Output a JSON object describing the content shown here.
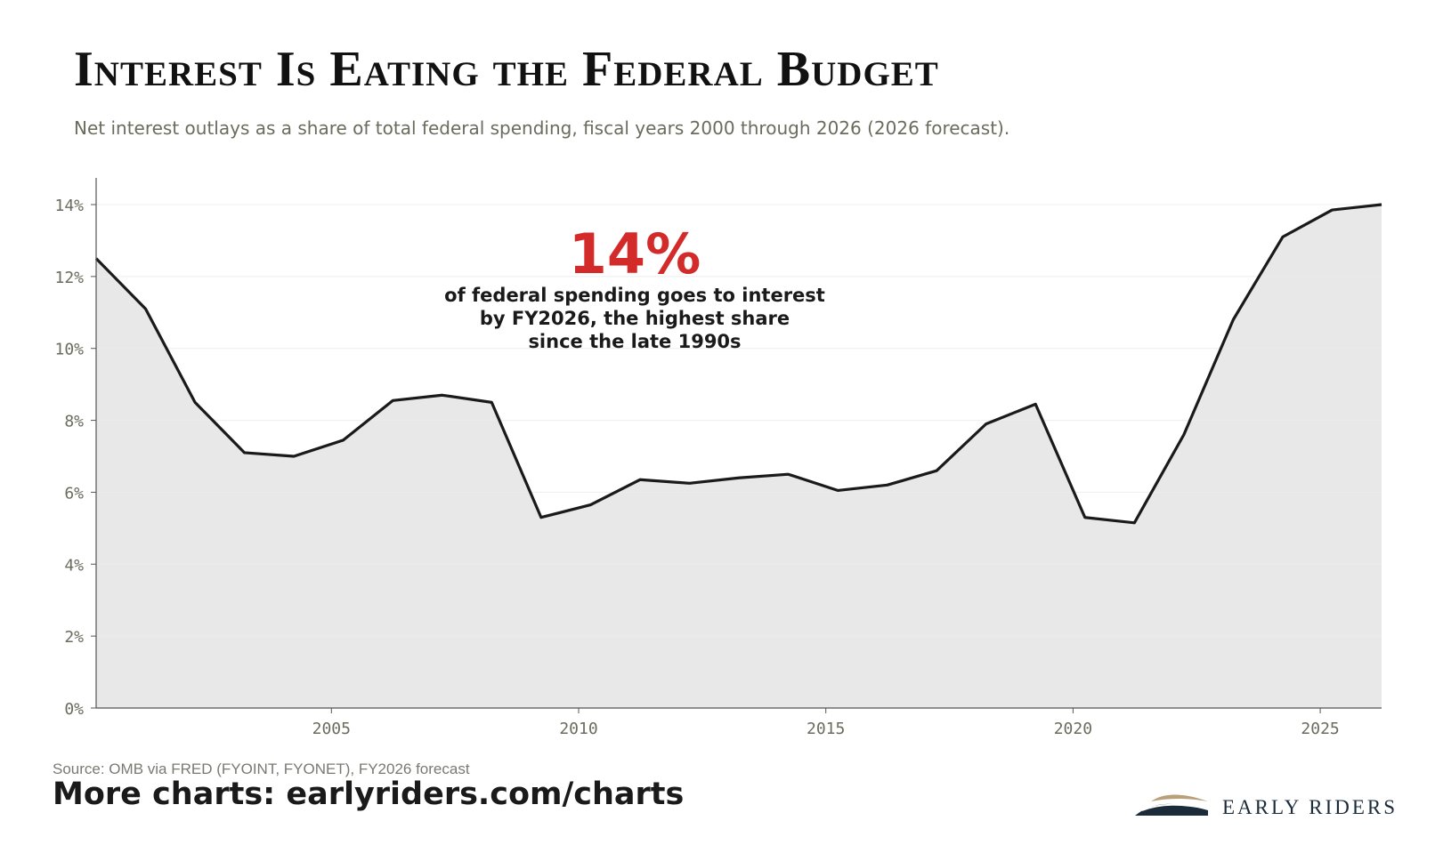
{
  "title": "Interest Is Eating the Federal Budget",
  "subtitle": "Net interest outlays as a share of total federal spending, fiscal years 2000 through 2026 (2026 forecast).",
  "source": "Source: OMB via FRED (FYOINT, FYONET), FY2026 forecast",
  "more_charts": "More charts: earlyriders.com/charts",
  "logo_text": "EARLY RIDERS",
  "colors": {
    "line": "#1a1a1a",
    "area": "#e8e8e8",
    "highlight": "#d32a2a",
    "axis_text": "#6b6b5e"
  },
  "annotation": {
    "value": "14%",
    "lines": [
      "of federal spending goes to interest",
      "by FY2026, the highest share",
      "since the late 1990s"
    ]
  },
  "chart_data": {
    "type": "area",
    "x": [
      2000,
      2001,
      2002,
      2003,
      2004,
      2005,
      2006,
      2007,
      2008,
      2009,
      2010,
      2011,
      2012,
      2013,
      2014,
      2015,
      2016,
      2017,
      2018,
      2019,
      2020,
      2021,
      2022,
      2023,
      2024,
      2025,
      2026
    ],
    "values": [
      12.5,
      11.1,
      8.5,
      7.1,
      7.0,
      7.45,
      8.55,
      8.7,
      8.5,
      5.3,
      5.65,
      6.35,
      6.25,
      6.4,
      6.5,
      6.05,
      6.2,
      6.6,
      7.9,
      8.45,
      5.3,
      5.15,
      7.6,
      10.8,
      13.1,
      13.85,
      14.0
    ],
    "xlim": [
      2000,
      2026
    ],
    "ylim": [
      0,
      14
    ],
    "yticks": [
      0,
      2,
      4,
      6,
      8,
      10,
      12,
      14
    ],
    "ytick_labels": [
      "0%",
      "2%",
      "4%",
      "6%",
      "8%",
      "10%",
      "12%",
      "14%"
    ],
    "xticks": [
      2005,
      2010,
      2015,
      2020,
      2025
    ],
    "xtick_labels": [
      "2005",
      "2010",
      "2015",
      "2020",
      "2025"
    ],
    "grid": true,
    "legend": "none"
  }
}
